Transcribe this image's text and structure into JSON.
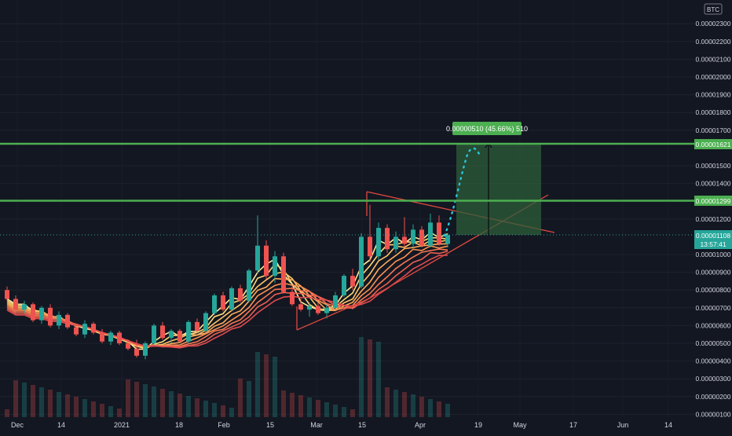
{
  "currency_badge": "BTC",
  "price_axis": {
    "ticks": [
      "0.00002300",
      "0.00002200",
      "0.00002100",
      "0.00002000",
      "0.00001900",
      "0.00001800",
      "0.00001700",
      "0.00001500",
      "0.00001400",
      "0.00001200",
      "0.00001000",
      "0.00000900",
      "0.00000800",
      "0.00000700",
      "0.00000600",
      "0.00000500",
      "0.00000400",
      "0.00000300",
      "0.00000200",
      "0.00000100"
    ],
    "tick_values": [
      2.3e-05,
      2.2e-05,
      2.1e-05,
      2e-05,
      1.9e-05,
      1.8e-05,
      1.7e-05,
      1.5e-05,
      1.4e-05,
      1.2e-05,
      1e-05,
      9e-06,
      8e-06,
      7e-06,
      6e-06,
      5e-06,
      4e-06,
      3e-06,
      2e-06,
      1e-06
    ]
  },
  "time_axis": {
    "labels": [
      "Dec",
      "14",
      "2021",
      "18",
      "Feb",
      "15",
      "Mar",
      "15",
      "Apr",
      "19",
      "May",
      "17",
      "Jun",
      "14"
    ]
  },
  "levels": {
    "upper": {
      "value": 1.621e-05,
      "label": "0.00001621",
      "color": "#4caf50"
    },
    "lower": {
      "value": 1.299e-05,
      "label": "0.00001299",
      "color": "#4caf50"
    },
    "current": {
      "value": 1.108e-05,
      "label": "0.00001108",
      "countdown": "13:57:41",
      "color": "#26a69a"
    }
  },
  "target_box": {
    "label": "0.00000510 (45.66%) 510",
    "color": "#4caf50"
  },
  "colors": {
    "background": "#131722",
    "grid": "#1e222d",
    "up": "#26a69a",
    "down": "#ef5350",
    "triangle": "#e0483e",
    "dotted_projection": "#26c6da",
    "ribbon": [
      "#ffeb9a",
      "#ffd97a",
      "#ffc468",
      "#ffac5b",
      "#fb9153",
      "#f47752",
      "#ea5f51",
      "#de4b4f"
    ]
  },
  "chart_data": {
    "type": "candlestick",
    "title": "",
    "x_labels": [
      "Dec",
      "14",
      "2021",
      "18",
      "Feb",
      "15",
      "Mar",
      "15",
      "Apr",
      "19",
      "May",
      "17",
      "Jun",
      "14"
    ],
    "y_range": [
      1e-06,
      2.34e-05
    ],
    "series": [
      {
        "values": [
          [
            8e-06,
            8.2e-06,
            7.4e-06,
            7.5e-06
          ],
          [
            7.5e-06,
            7.7e-06,
            6.8e-06,
            6.9e-06
          ],
          [
            6.9e-06,
            7.4e-06,
            6.7e-06,
            7.2e-06
          ],
          [
            7.2e-06,
            7.3e-06,
            6.2e-06,
            6.3e-06
          ],
          [
            6.3e-06,
            7.1e-06,
            6.1e-06,
            7e-06
          ],
          [
            7e-06,
            7.2e-06,
            5.9e-06,
            6e-06
          ],
          [
            6e-06,
            6.8e-06,
            5.8e-06,
            6.6e-06
          ],
          [
            6.6e-06,
            6.7e-06,
            5.8e-06,
            5.9e-06
          ],
          [
            5.9e-06,
            6.1e-06,
            5.4e-06,
            5.5e-06
          ],
          [
            5.5e-06,
            6.3e-06,
            5.3e-06,
            6.1e-06
          ],
          [
            6.1e-06,
            6.2e-06,
            5.5e-06,
            5.6e-06
          ],
          [
            5.6e-06,
            5.8e-06,
            5e-06,
            5.1e-06
          ],
          [
            5.1e-06,
            5.7e-06,
            4.9e-06,
            5.6e-06
          ],
          [
            5.6e-06,
            5.7e-06,
            4.9e-06,
            5e-06
          ],
          [
            5e-06,
            5.2e-06,
            4.6e-06,
            4.7e-06
          ],
          [
            4.7e-06,
            5.2e-06,
            4.2e-06,
            4.3e-06
          ],
          [
            4.3e-06,
            5.1e-06,
            4.1e-06,
            5e-06
          ],
          [
            5e-06,
            6.1e-06,
            4.9e-06,
            6e-06
          ],
          [
            6e-06,
            6.2e-06,
            5.2e-06,
            5.3e-06
          ],
          [
            5.3e-06,
            5.8e-06,
            5e-06,
            5.7e-06
          ],
          [
            5.7e-06,
            5.8e-06,
            5e-06,
            5.1e-06
          ],
          [
            5.1e-06,
            6.3e-06,
            5e-06,
            6.2e-06
          ],
          [
            6.2e-06,
            6.4e-06,
            5.6e-06,
            5.7e-06
          ],
          [
            5.7e-06,
            6.8e-06,
            5.6e-06,
            6.7e-06
          ],
          [
            6.7e-06,
            7.8e-06,
            6.6e-06,
            7.7e-06
          ],
          [
            7.7e-06,
            7.9e-06,
            6.8e-06,
            6.9e-06
          ],
          [
            6.9e-06,
            8.2e-06,
            6.8e-06,
            8.1e-06
          ],
          [
            8.1e-06,
            8.3e-06,
            7.3e-06,
            7.4e-06
          ],
          [
            7.4e-06,
            9.2e-06,
            7.3e-06,
            9.1e-06
          ],
          [
            9.1e-06,
            1.22e-05,
            8.9e-06,
            1.05e-05
          ],
          [
            1.05e-05,
            1.08e-05,
            8.6e-06,
            8.8e-06
          ],
          [
            8.8e-06,
            1.02e-05,
            8.4e-06,
            9.9e-06
          ],
          [
            9.9e-06,
            1.01e-05,
            7.8e-06,
            7.9e-06
          ],
          [
            7.9e-06,
            8.2e-06,
            7.1e-06,
            7.2e-06
          ],
          [
            7.2e-06,
            7.5e-06,
            6.8e-06,
            6.9e-06
          ],
          [
            6.9e-06,
            7.3e-06,
            6.5e-06,
            7.1e-06
          ],
          [
            7.1e-06,
            7.3e-06,
            6.6e-06,
            6.7e-06
          ],
          [
            6.7e-06,
            7.2e-06,
            6.4e-06,
            7e-06
          ],
          [
            7e-06,
            7.9e-06,
            6.9e-06,
            7.7e-06
          ],
          [
            7.7e-06,
            8.9e-06,
            7.6e-06,
            8.8e-06
          ],
          [
            8.8e-06,
            9.2e-06,
            8e-06,
            8.2e-06
          ],
          [
            8.2e-06,
            1.12e-05,
            8.1e-06,
            1.1e-05
          ],
          [
            1.1e-05,
            1.28e-05,
            9.6e-06,
            9.9e-06
          ],
          [
            9.9e-06,
            1.18e-05,
            9.7e-06,
            1.15e-05
          ],
          [
            1.15e-05,
            1.17e-05,
            1.01e-05,
            1.03e-05
          ],
          [
            1.03e-05,
            1.13e-05,
            1.01e-05,
            1.1e-05
          ],
          [
            1.1e-05,
            1.21e-05,
            1.04e-05,
            1.06e-05
          ],
          [
            1.06e-05,
            1.17e-05,
            1.04e-05,
            1.14e-05
          ],
          [
            1.14e-05,
            1.16e-05,
            1.04e-05,
            1.05e-05
          ],
          [
            1.05e-05,
            1.23e-05,
            1.04e-05,
            1.18e-05
          ],
          [
            1.18e-05,
            1.22e-05,
            1.05e-05,
            1.06e-05
          ],
          [
            1.06e-05,
            1.12e-05,
            1.04e-05,
            1.11e-05
          ]
        ]
      }
    ]
  }
}
